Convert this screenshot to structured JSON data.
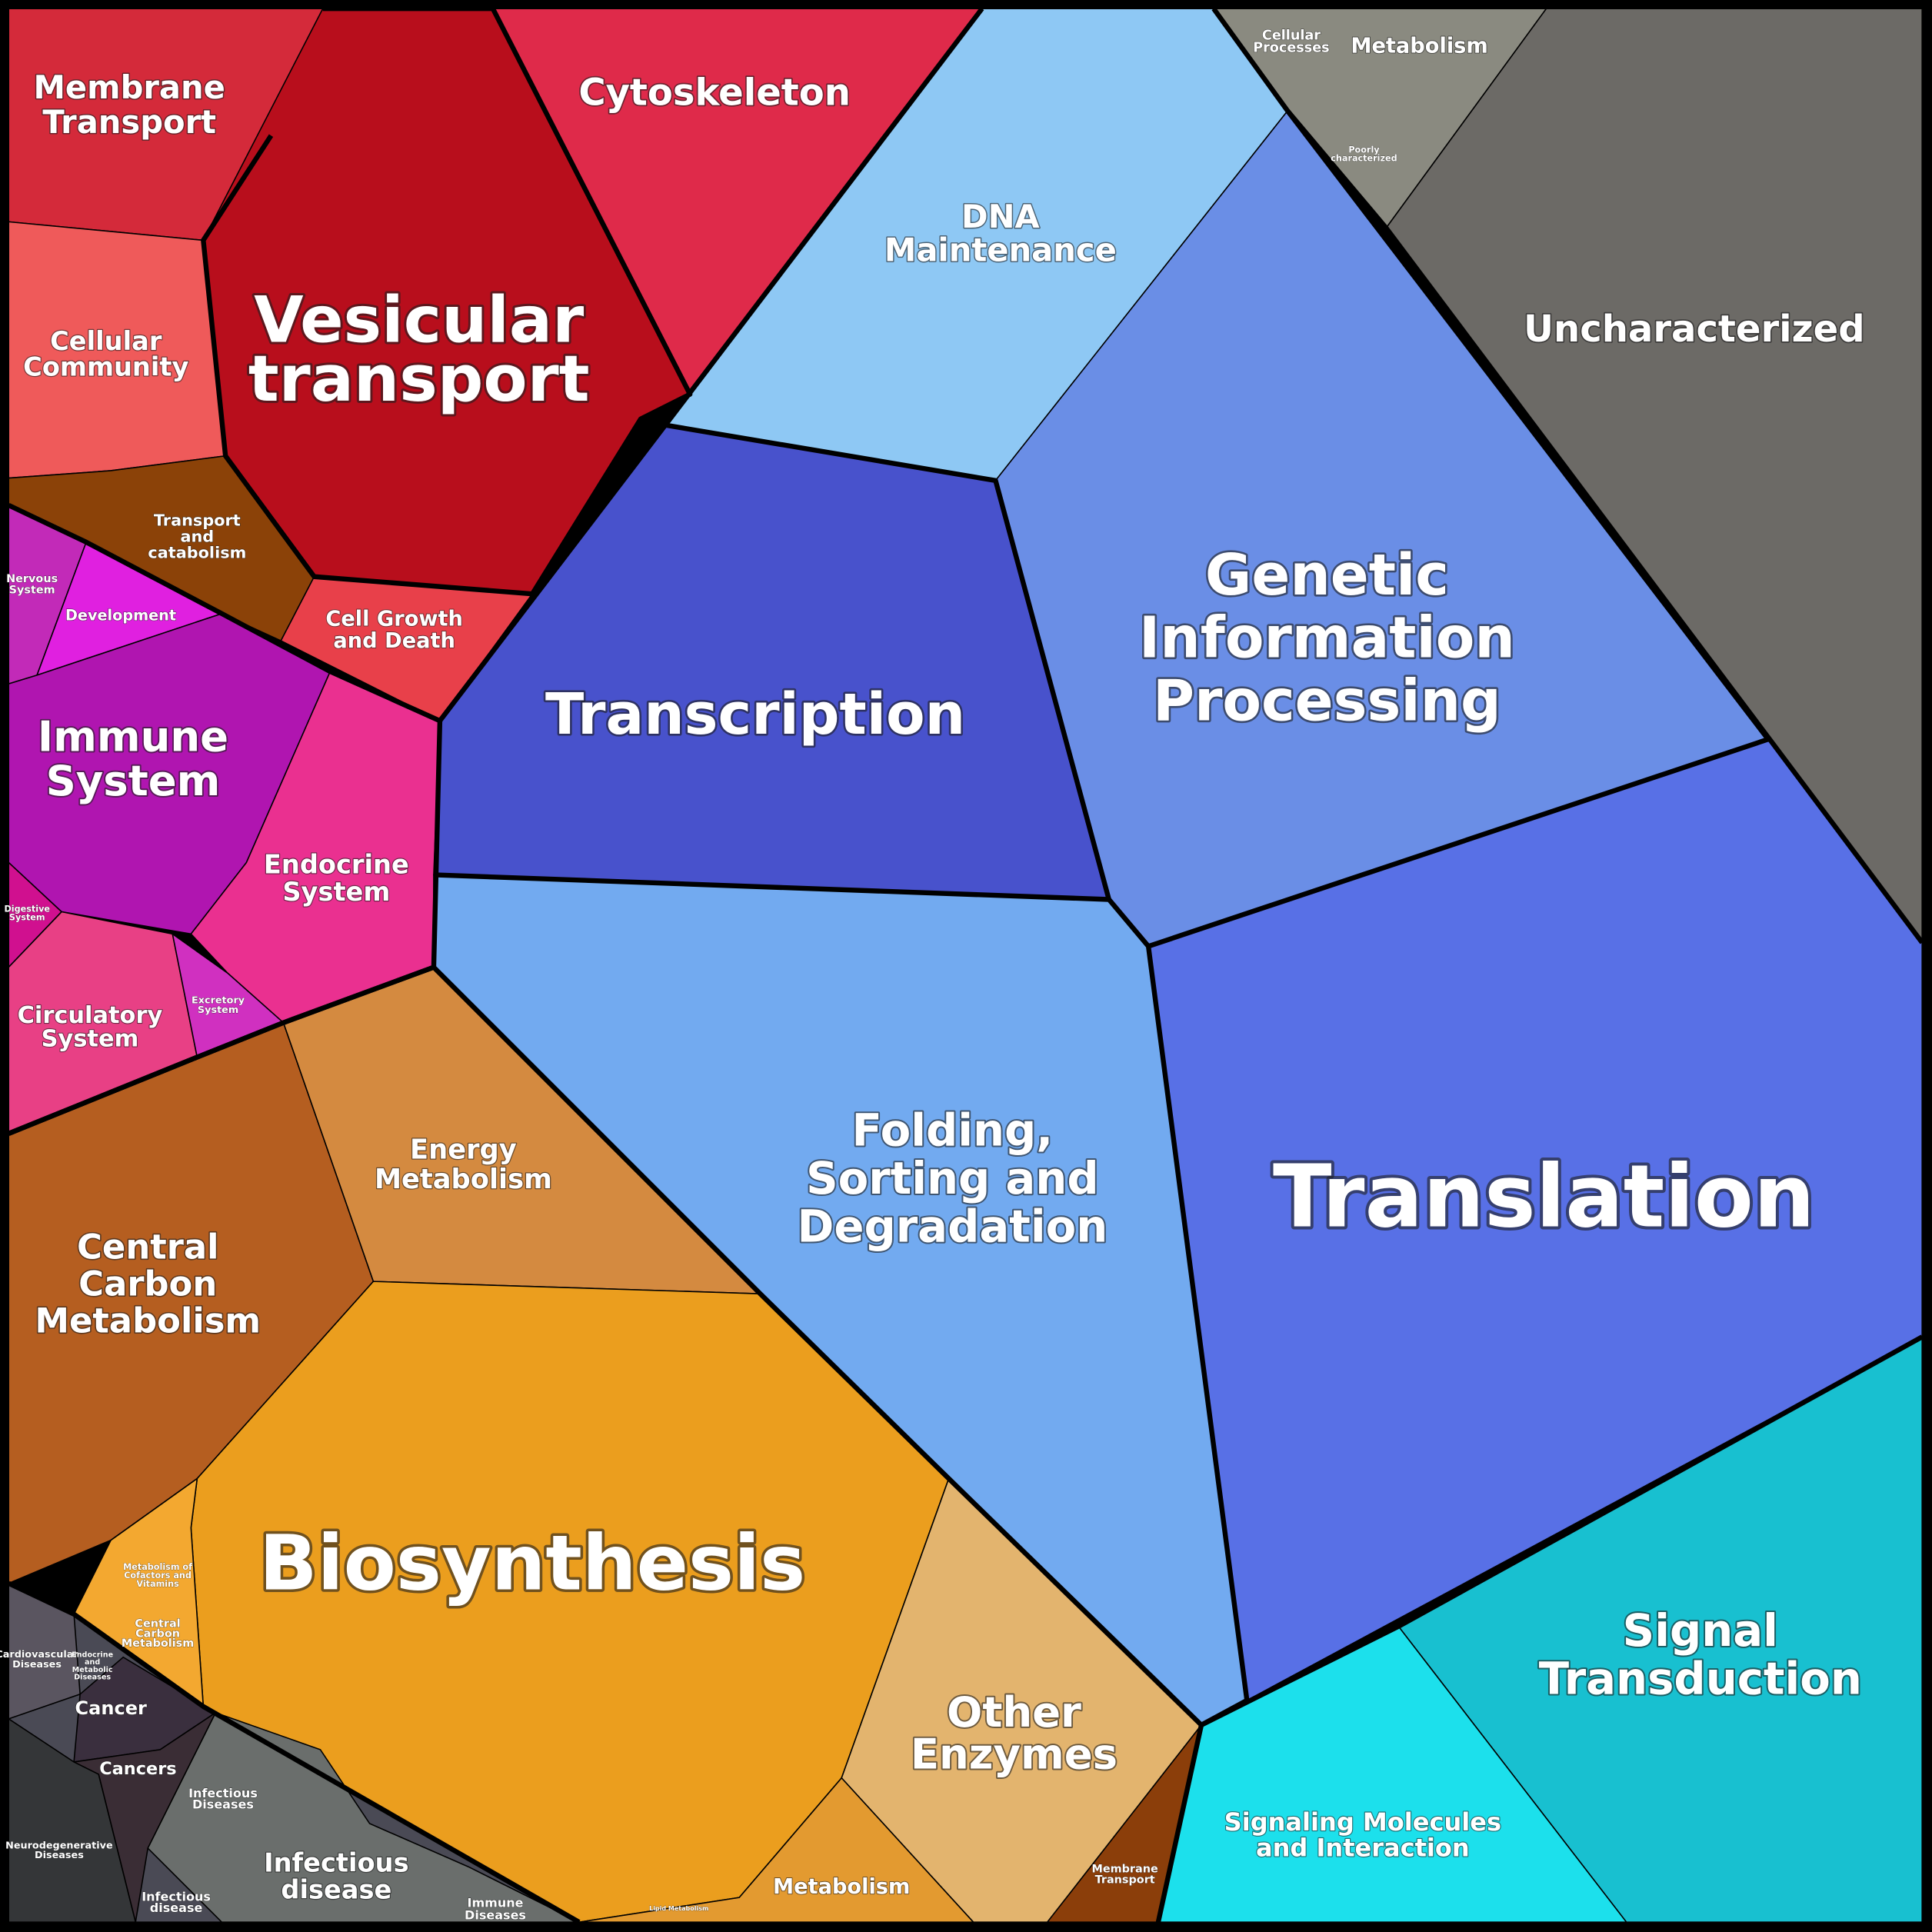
{
  "cells": [
    {
      "lines": [
        "Membrane",
        "Transport"
      ]
    },
    {
      "lines": [
        "Vesicular",
        "transport"
      ]
    },
    {
      "lines": [
        "Cytoskeleton"
      ]
    },
    {
      "lines": [
        "Cellular",
        "Community"
      ]
    },
    {
      "lines": [
        "Transport",
        "and",
        "catabolism"
      ]
    },
    {
      "lines": [
        "Cell Growth",
        "and Death"
      ]
    },
    {
      "lines": [
        "Nervous",
        "System"
      ]
    },
    {
      "lines": [
        "Development"
      ]
    },
    {
      "lines": [
        "Immune",
        "System"
      ]
    },
    {
      "lines": [
        "Endocrine",
        "System"
      ]
    },
    {
      "lines": [
        "Digestive",
        "System"
      ]
    },
    {
      "lines": [
        "Circulatory",
        "System"
      ]
    },
    {
      "lines": [
        "Excretory",
        "System"
      ]
    },
    {
      "lines": [
        "DNA",
        "Maintenance"
      ]
    },
    {
      "lines": [
        "Cellular",
        "Processes"
      ]
    },
    {
      "lines": [
        "Metabolism"
      ]
    },
    {
      "lines": [
        "Poorly",
        "characterized"
      ]
    },
    {
      "lines": [
        "Uncharacterized"
      ]
    },
    {
      "lines": [
        "Genetic",
        "Information",
        "Processing"
      ]
    },
    {
      "lines": [
        "Transcription"
      ]
    },
    {
      "lines": [
        "Translation"
      ]
    },
    {
      "lines": [
        "Folding,",
        "Sorting and",
        "Degradation"
      ]
    },
    {
      "lines": [
        "Energy",
        "Metabolism"
      ]
    },
    {
      "lines": [
        "Central",
        "Carbon",
        "Metabolism"
      ]
    },
    {
      "lines": [
        "Biosynthesis"
      ]
    },
    {
      "lines": [
        "Metabolism of",
        "Cofactors and",
        "Vitamins"
      ]
    },
    {
      "lines": [
        "Central",
        "Carbon",
        "Metabolism"
      ]
    },
    {
      "lines": [
        "Other",
        "Enzymes"
      ]
    },
    {
      "lines": [
        "Metabolism"
      ]
    },
    {
      "lines": [
        "Membrane",
        "Transport"
      ]
    },
    {
      "lines": [
        "Signaling Molecules",
        "and Interaction"
      ]
    },
    {
      "lines": [
        "Signal",
        "Transduction"
      ]
    },
    {
      "lines": [
        "Cardiovascular",
        "Diseases"
      ]
    },
    {
      "lines": [
        "Endocrine",
        "and",
        "Metabolic",
        "Diseases"
      ]
    },
    {
      "lines": [
        "Cancer"
      ]
    },
    {
      "lines": [
        "Cancers"
      ]
    },
    {
      "lines": [
        "Neurodegenerative",
        "Diseases"
      ]
    },
    {
      "lines": [
        "Infectious",
        "Diseases"
      ]
    },
    {
      "lines": [
        "Infectious",
        "disease"
      ]
    },
    {
      "lines": [
        "Infectious",
        "disease"
      ]
    },
    {
      "lines": [
        "Immune",
        "Diseases"
      ]
    },
    {
      "lines": [
        "Lipid Metabolism"
      ]
    }
  ]
}
